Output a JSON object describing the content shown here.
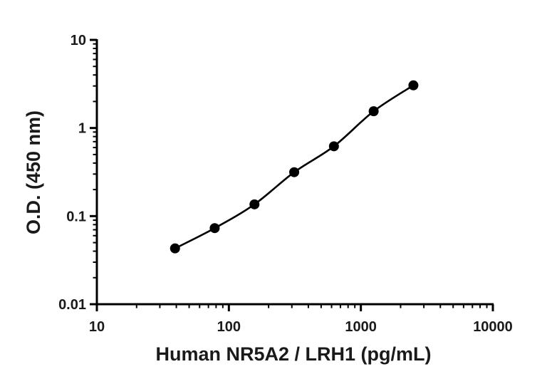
{
  "chart_data": {
    "type": "scatter",
    "xlabel": "Human NR5A2 / LRH1 (pg/mL)",
    "ylabel": "O.D. (450 nm)",
    "x_scale": "log",
    "y_scale": "log",
    "xlim": [
      10,
      10000
    ],
    "ylim": [
      0.01,
      10
    ],
    "x_ticks": [
      "10",
      "100",
      "1000",
      "10000"
    ],
    "y_ticks": [
      "0.01",
      "0.1",
      "1",
      "10"
    ],
    "grid": false,
    "legend": "none",
    "series": [
      {
        "x": [
          39.1,
          78.1,
          156.3,
          312.5,
          625,
          1250,
          2500
        ],
        "y": [
          0.043,
          0.073,
          0.136,
          0.315,
          0.62,
          1.55,
          3.05
        ],
        "fit_curve": true
      }
    ],
    "colors": {
      "line": "#000000",
      "marker": "#000000",
      "axis": "#000000"
    }
  }
}
